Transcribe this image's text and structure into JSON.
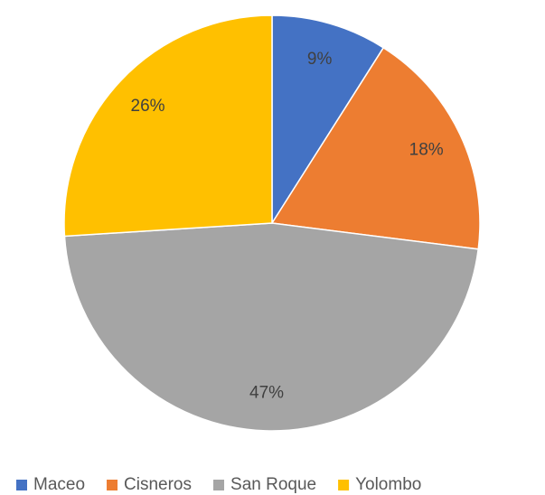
{
  "chart_data": {
    "type": "pie",
    "categories": [
      "Maceo",
      "Cisneros",
      "San Roque",
      "Yolombo"
    ],
    "values": [
      9,
      18,
      47,
      26
    ],
    "value_labels": [
      "9%",
      "18%",
      "47%",
      "26%"
    ],
    "colors": [
      "#4472c4",
      "#ed7d31",
      "#a5a5a5",
      "#ffc000"
    ],
    "legend": "bottom"
  }
}
